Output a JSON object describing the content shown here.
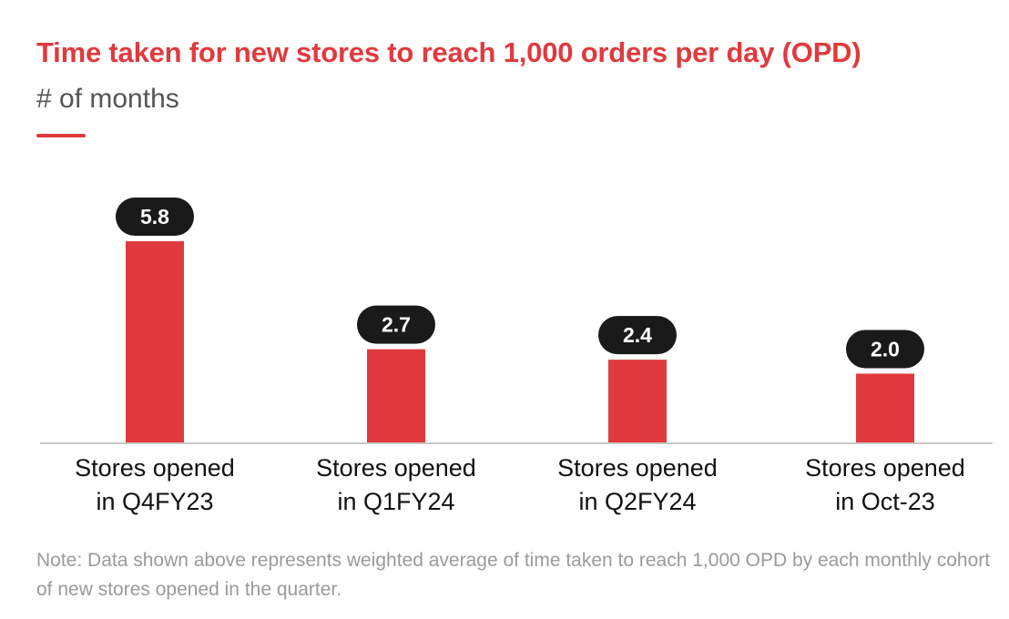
{
  "chart_data": {
    "type": "bar",
    "title": "Time taken for new stores to reach 1,000 orders per day (OPD)",
    "subtitle": "# of months",
    "categories": [
      [
        "Stores opened",
        "in Q4FY23"
      ],
      [
        "Stores opened",
        "in Q1FY24"
      ],
      [
        "Stores opened",
        "in Q2FY24"
      ],
      [
        "Stores opened",
        "in Oct-23"
      ]
    ],
    "values": [
      5.8,
      2.7,
      2.4,
      2.0
    ],
    "value_labels": [
      "5.8",
      "2.7",
      "2.4",
      "2.0"
    ],
    "ylim": [
      0,
      5.8
    ],
    "grid": false,
    "bar_color": "#e03a3e",
    "label_pill_color": "#1a1a1a",
    "label_text_color": "#ffffff"
  },
  "note": "Note: Data shown above represents weighted average of time taken to reach 1,000 OPD by each monthly cohort of new stores opened in the quarter.",
  "colors": {
    "accent": "#e03a3e",
    "subtitle": "#555555",
    "note": "#9a9a9a",
    "axis": "#c8c8c8"
  }
}
